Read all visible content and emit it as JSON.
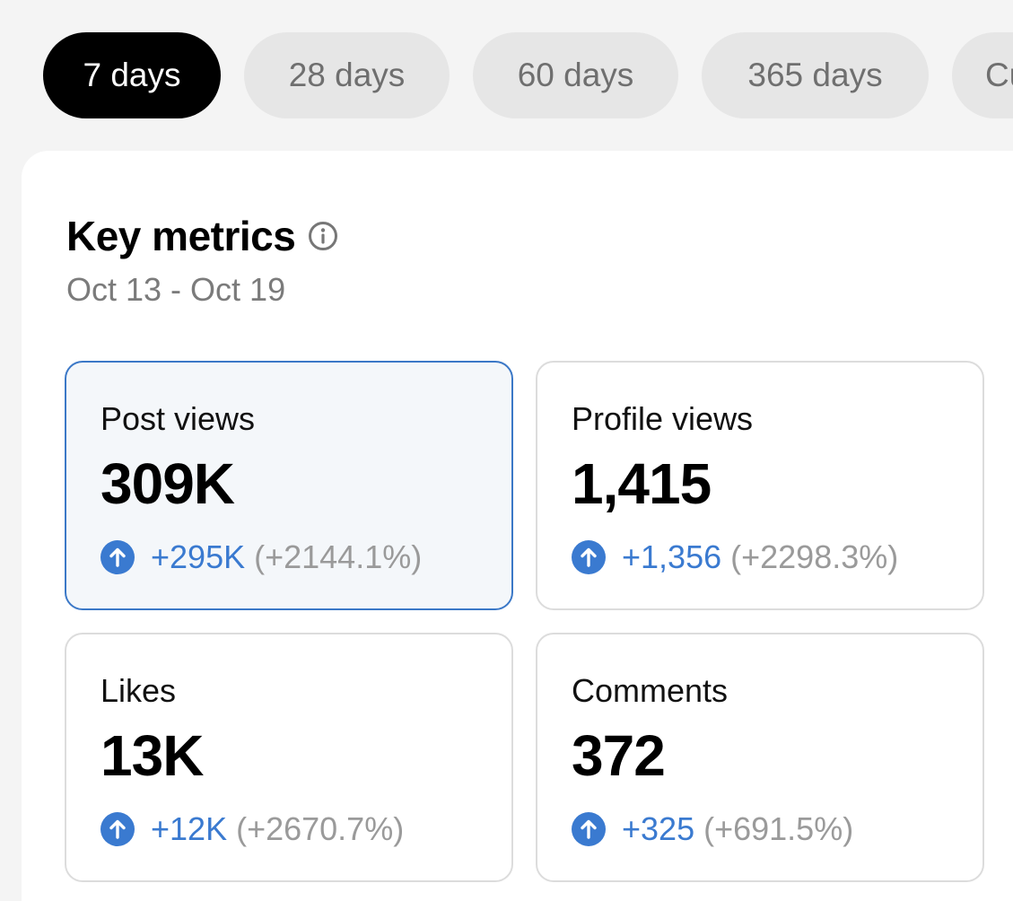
{
  "tabs": [
    {
      "label": "7 days",
      "active": true
    },
    {
      "label": "28 days",
      "active": false
    },
    {
      "label": "60 days",
      "active": false
    },
    {
      "label": "365 days",
      "active": false
    },
    {
      "label": "Cu",
      "active": false
    }
  ],
  "key_metrics": {
    "title": "Key metrics",
    "info_icon": "info-icon",
    "date_range": "Oct 13 - Oct 19",
    "metrics": [
      {
        "label": "Post views",
        "value": "309K",
        "delta": "+295K",
        "percent": "(+2144.1%)",
        "selected": true
      },
      {
        "label": "Profile views",
        "value": "1,415",
        "delta": "+1,356",
        "percent": "(+2298.3%)",
        "selected": false
      },
      {
        "label": "Likes",
        "value": "13K",
        "delta": "+12K",
        "percent": "(+2670.7%)",
        "selected": false
      },
      {
        "label": "Comments",
        "value": "372",
        "delta": "+325",
        "percent": "(+691.5%)",
        "selected": false
      }
    ]
  },
  "colors": {
    "accent_blue": "#3a7ad0",
    "selected_border": "#3b78c7",
    "active_tab_bg": "#000000"
  }
}
